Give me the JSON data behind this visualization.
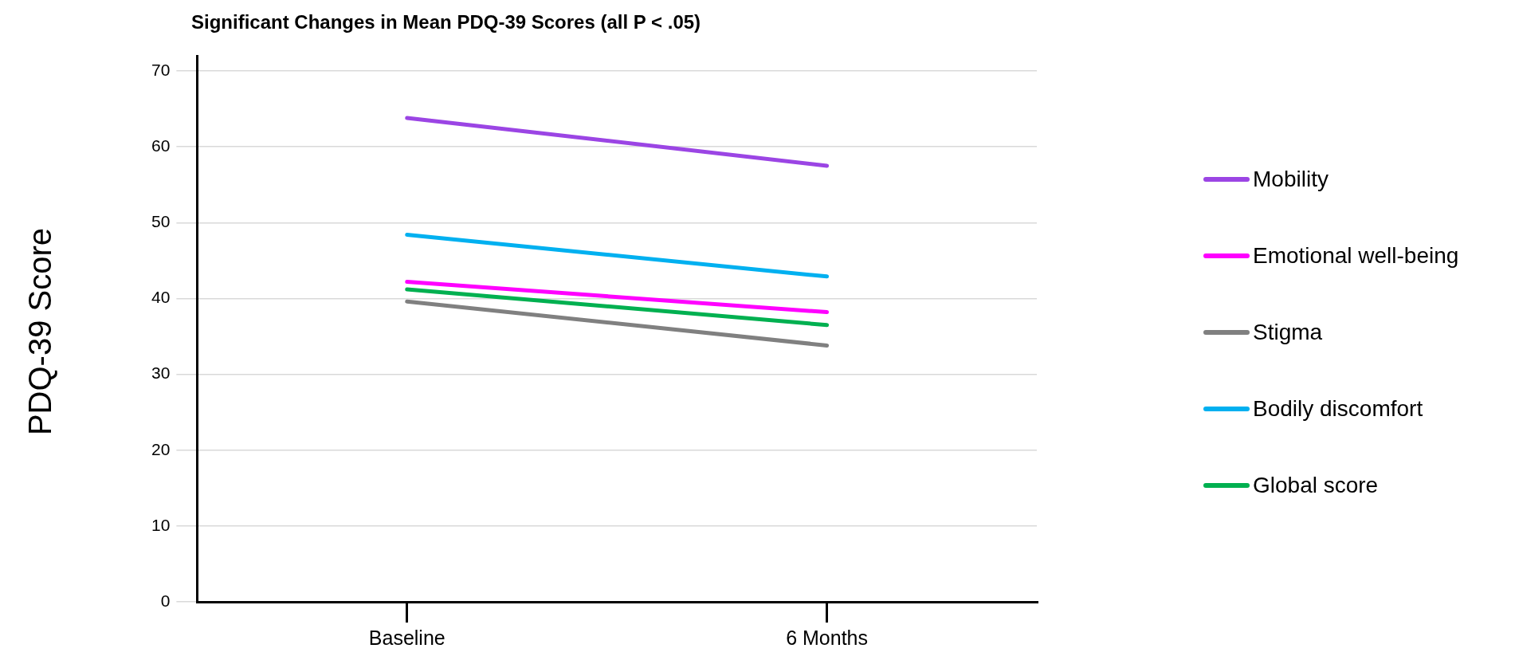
{
  "chart_data": {
    "type": "line",
    "title": "Significant Changes in Mean PDQ-39 Scores (all P < .05)",
    "ylabel": "PDQ-39 Score",
    "categories": [
      "Baseline",
      "6 Months"
    ],
    "series": [
      {
        "name": "Mobility",
        "color": "#9b45e4",
        "values": [
          63.8,
          57.5
        ]
      },
      {
        "name": "Emotional well-being",
        "color": "#ff00ff",
        "values": [
          42.2,
          38.2
        ]
      },
      {
        "name": "Stigma",
        "color": "#808080",
        "values": [
          39.6,
          33.8
        ]
      },
      {
        "name": "Bodily discomfort",
        "color": "#00b0f0",
        "values": [
          48.4,
          42.9
        ]
      },
      {
        "name": "Global score",
        "color": "#00b050",
        "values": [
          41.2,
          36.5
        ]
      }
    ],
    "ylim": [
      0,
      72
    ],
    "yticks": [
      0,
      10,
      20,
      30,
      40,
      50,
      60,
      70
    ],
    "grid": "y",
    "legend": "right",
    "marker": "none",
    "line_style": "solid"
  }
}
